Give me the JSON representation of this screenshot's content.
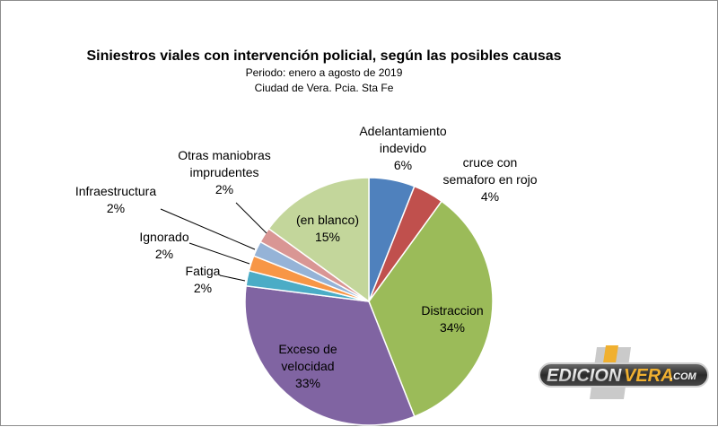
{
  "chart_data": {
    "type": "pie",
    "title": "Siniestros viales con intervención policial, según las posibles causas",
    "subtitle_lines": [
      "Periodo: enero a agosto de 2019",
      "Ciudad de Vera. Pcia. Sta Fe"
    ],
    "slices": [
      {
        "label_lines": [
          "Adelantamiento",
          "indevido"
        ],
        "pct_label": "6%",
        "value": 6,
        "color": "#4f81bd"
      },
      {
        "label_lines": [
          "cruce con",
          "semaforo en rojo"
        ],
        "pct_label": "4%",
        "value": 4,
        "color": "#c0504d"
      },
      {
        "label_lines": [
          "Distraccion"
        ],
        "pct_label": "34%",
        "value": 34,
        "color": "#9bbb59"
      },
      {
        "label_lines": [
          "Exceso de",
          "velocidad"
        ],
        "pct_label": "33%",
        "value": 33,
        "color": "#8064a2"
      },
      {
        "label_lines": [
          "Fatiga"
        ],
        "pct_label": "2%",
        "value": 2,
        "color": "#4bacc6"
      },
      {
        "label_lines": [
          "Ignorado"
        ],
        "pct_label": "2%",
        "value": 2,
        "color": "#f79646"
      },
      {
        "label_lines": [
          "Infraestructura"
        ],
        "pct_label": "2%",
        "value": 2,
        "color": "#95b3d7"
      },
      {
        "label_lines": [
          "Otras maniobras",
          "imprudentes"
        ],
        "pct_label": "2%",
        "value": 2,
        "color": "#d99694"
      },
      {
        "label_lines": [
          "(en blanco)"
        ],
        "pct_label": "15%",
        "value": 15,
        "color": "#c3d69b"
      }
    ]
  },
  "watermark": {
    "text_left": "EDICION",
    "text_right": "VERA",
    "text_suffix": ".COM"
  }
}
